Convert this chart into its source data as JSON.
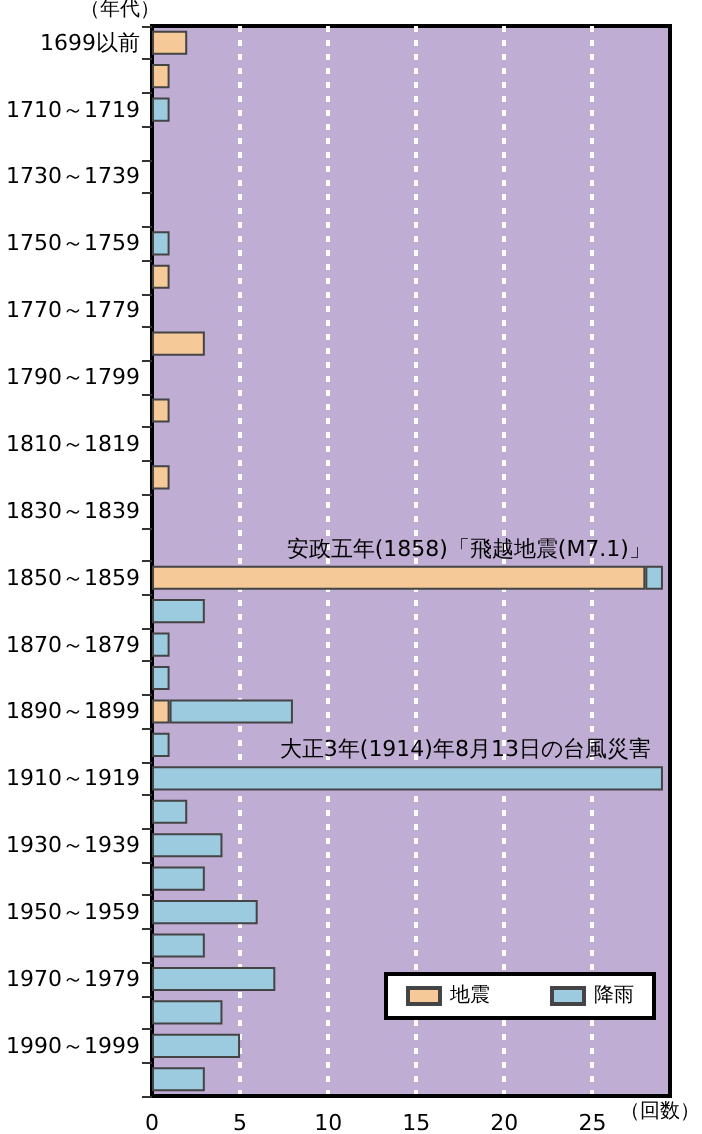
{
  "chart_data": {
    "type": "bar",
    "orientation": "horizontal",
    "stacked": true,
    "xlabel": "（回数）",
    "ylabel": "（年代）",
    "categories": [
      "1699以前",
      null,
      "1710～1719",
      null,
      "1730～1739",
      null,
      "1750～1759",
      null,
      "1770～1779",
      null,
      "1790～1799",
      null,
      "1810～1819",
      null,
      "1830～1839",
      null,
      "1850～1859",
      null,
      "1870～1879",
      null,
      "1890～1899",
      null,
      "1910～1919",
      null,
      "1930～1939",
      null,
      "1950～1959",
      null,
      "1970～1979",
      null,
      "1990～1999",
      null
    ],
    "series": [
      {
        "name": "地震",
        "color": "#f5c998",
        "values": [
          2,
          1,
          0,
          0,
          0,
          0,
          0,
          1,
          0,
          3,
          0,
          1,
          0,
          1,
          0,
          0,
          28,
          0,
          0,
          0,
          1,
          0,
          0,
          0,
          0,
          0,
          0,
          0,
          0,
          0,
          0,
          0
        ]
      },
      {
        "name": "降雨",
        "color": "#9ccbe0",
        "values": [
          0,
          0,
          1,
          0,
          0,
          0,
          1,
          0,
          0,
          0,
          0,
          0,
          0,
          0,
          0,
          0,
          1,
          3,
          1,
          1,
          7,
          1,
          29,
          2,
          4,
          3,
          6,
          3,
          7,
          4,
          5,
          3
        ]
      }
    ],
    "xlim": [
      0,
      29.4
    ],
    "xticks": [
      0,
      5,
      10,
      15,
      20,
      25
    ],
    "grid": "x",
    "legend": "bottom right",
    "annotations": [
      {
        "text": "安政五年(1858)「飛越地震(M7.1)」",
        "x": 29,
        "y": "1850～1859"
      },
      {
        "text": "大正3年(1914)年8月13日の台風災害",
        "x": 29,
        "y": "1910～1919"
      }
    ]
  }
}
